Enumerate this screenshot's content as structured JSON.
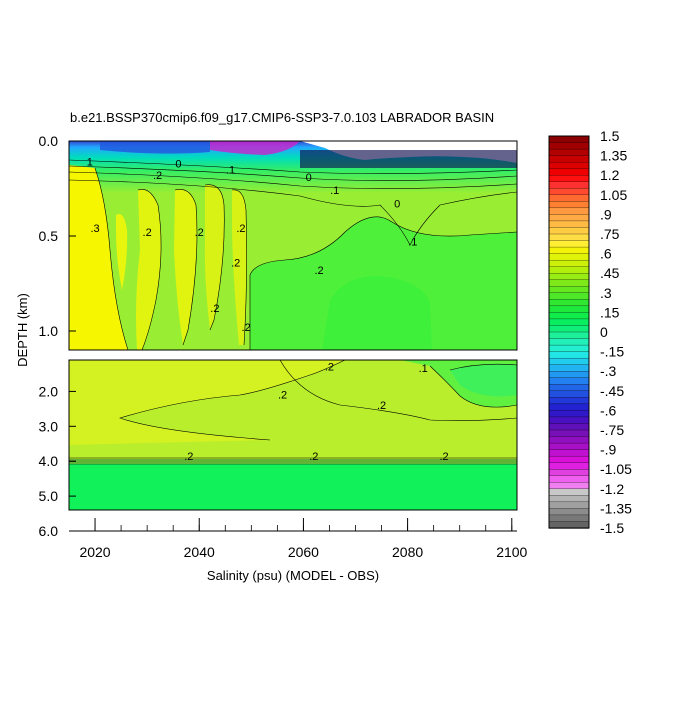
{
  "chart_data": {
    "type": "heatmap",
    "title": "b.e21.BSSP370cmip6.f09_g17.CMIP6-SSP3-7.0.103 LABRADOR BASIN",
    "xlabel": "Salinity (psu) (MODEL - OBS)",
    "ylabel": "DEPTH (km)",
    "xlim": [
      2015,
      2101
    ],
    "x_ticks": [
      "2020",
      "2040",
      "2060",
      "2080",
      "2100"
    ],
    "y_ticks_upper": [
      "0.0",
      "0.5",
      "1.0"
    ],
    "y_ticks_lower": [
      "2.0",
      "3.0",
      "4.0",
      "5.0",
      "6.0"
    ],
    "ylim_upper": [
      0,
      1.1
    ],
    "ylim_lower": [
      1.1,
      6.0
    ],
    "colorbar_labels": [
      "1.5",
      "1.35",
      "1.2",
      "1.05",
      ".9",
      ".75",
      ".6",
      ".45",
      ".3",
      ".15",
      "0",
      "-.15",
      "-.3",
      "-.45",
      "-.6",
      "-.75",
      "-.9",
      "-1.05",
      "-1.2",
      "-1.35",
      "-1.5"
    ],
    "colorbar_range": [
      -1.5,
      1.5
    ],
    "contour_labels": [
      {
        "text": "1",
        "x": 2019,
        "y": 0.13
      },
      {
        "text": "0",
        "x": 2036,
        "y": 0.14
      },
      {
        "text": ".1",
        "x": 2046,
        "y": 0.17
      },
      {
        "text": ".2",
        "x": 2032,
        "y": 0.2
      },
      {
        "text": "0",
        "x": 2061,
        "y": 0.21
      },
      {
        "text": ".1",
        "x": 2066,
        "y": 0.28
      },
      {
        "text": "0",
        "x": 2078,
        "y": 0.35
      },
      {
        "text": ".3",
        "x": 2020,
        "y": 0.48
      },
      {
        "text": ".2",
        "x": 2030,
        "y": 0.5
      },
      {
        "text": ".2",
        "x": 2040,
        "y": 0.5
      },
      {
        "text": ".2",
        "x": 2048,
        "y": 0.48
      },
      {
        "text": ".2",
        "x": 2047,
        "y": 0.66
      },
      {
        "text": ".2",
        "x": 2063,
        "y": 0.7
      },
      {
        "text": ".1",
        "x": 2081,
        "y": 0.55
      },
      {
        "text": ".2",
        "x": 2043,
        "y": 0.9
      },
      {
        "text": ".2",
        "x": 2049,
        "y": 1.0
      },
      {
        "text": ".2",
        "x": 2065,
        "y": 1.4
      },
      {
        "text": ".1",
        "x": 2083,
        "y": 1.45
      },
      {
        "text": ".2",
        "x": 2056,
        "y": 2.2
      },
      {
        "text": ".2",
        "x": 2075,
        "y": 2.5
      },
      {
        "text": ".2",
        "x": 2038,
        "y": 3.97
      },
      {
        "text": ".2",
        "x": 2062,
        "y": 3.97
      },
      {
        "text": ".2",
        "x": 2087,
        "y": 3.97
      }
    ]
  }
}
